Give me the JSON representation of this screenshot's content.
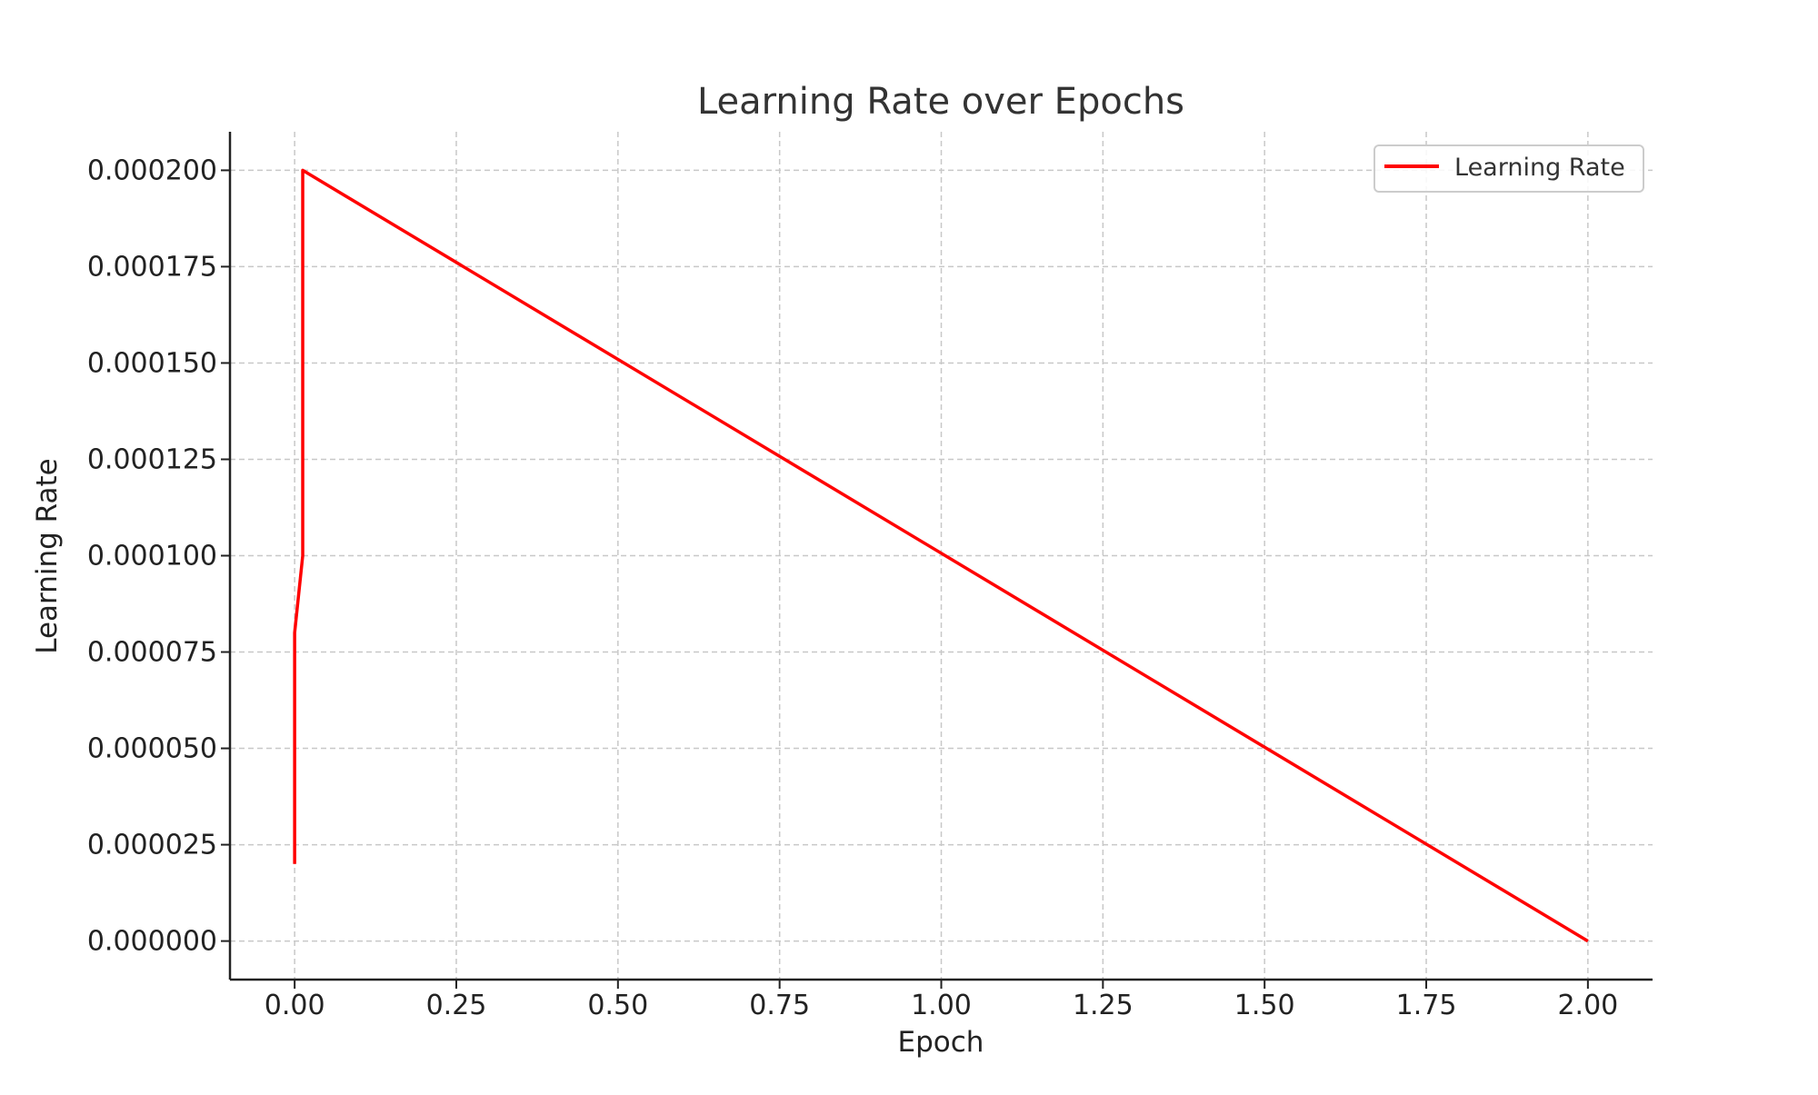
{
  "chart_data": {
    "type": "line",
    "title": "Learning Rate over Epochs",
    "xlabel": "Epoch",
    "ylabel": "Learning Rate",
    "xlim": [
      -0.1,
      2.1
    ],
    "ylim": [
      -1e-05,
      0.00021
    ],
    "xticks": [
      0.0,
      0.25,
      0.5,
      0.75,
      1.0,
      1.25,
      1.5,
      1.75,
      2.0
    ],
    "xtick_labels": [
      "0.00",
      "0.25",
      "0.50",
      "0.75",
      "1.00",
      "1.25",
      "1.50",
      "1.75",
      "2.00"
    ],
    "yticks": [
      0.0,
      2.5e-05,
      5e-05,
      7.5e-05,
      0.0001,
      0.000125,
      0.00015,
      0.000175,
      0.0002
    ],
    "ytick_labels": [
      "0.000000",
      "0.000025",
      "0.000050",
      "0.000075",
      "0.000100",
      "0.000125",
      "0.000150",
      "0.000175",
      "0.000200"
    ],
    "grid": true,
    "legend_position": "top-right",
    "series": [
      {
        "name": "Learning Rate",
        "color": "#ff0000",
        "x": [
          0.0,
          0.0,
          0.0,
          0.0,
          0.0,
          0.0,
          0.0,
          0.0,
          0.0,
          0.0,
          0.0,
          0.0,
          0.0,
          0.0,
          0.0,
          0.0,
          0.0,
          0.0,
          0.0,
          0.0,
          0.0,
          0.0,
          0.0,
          0.0,
          0.0,
          0.0,
          0.0,
          0.0,
          0.0,
          0.0,
          0.0,
          0.0,
          0.0,
          0.0,
          0.0,
          0.0,
          0.0,
          0.0,
          0.0,
          0.0,
          0.0,
          0.0,
          0.0,
          0.0,
          0.0,
          0.0,
          0.0,
          0.0,
          0.0,
          0.0,
          0.0,
          0.0,
          0.0,
          0.0,
          0.0,
          0.0,
          0.0,
          0.0,
          0.0,
          0.0,
          0.0,
          0.0,
          0.0,
          0.0,
          0.0,
          0.0,
          0.0,
          0.0,
          0.0,
          0.0,
          0.0,
          0.0,
          0.0,
          0.0,
          0.0,
          0.0,
          0.0,
          0.0,
          0.0,
          0.0,
          0.0,
          0.0,
          0.0,
          0.0,
          0.0,
          0.0,
          0.0,
          0.0,
          0.0,
          0.0,
          0.0,
          0.0,
          0.0,
          0.0,
          0.0,
          0.0,
          0.0,
          0.0,
          0.0,
          0.0,
          0.0,
          0.0,
          0.0,
          0.0,
          0.0,
          0.0,
          0.0,
          0.0,
          0.0,
          0.0,
          0.0,
          0.0,
          0.0,
          0.0,
          0.0,
          0.0,
          0.0,
          0.0,
          0.0,
          0.0,
          0.0,
          0.0,
          0.0,
          0.0,
          0.0,
          0.0,
          0.0,
          0.0,
          0.0,
          0.0,
          0.0,
          0.0,
          0.0,
          0.0,
          0.0,
          0.0,
          0.0,
          0.0,
          0.0,
          0.0,
          0.0,
          0.0,
          0.0,
          0.0,
          0.0,
          0.0,
          0.0,
          0.0,
          0.0,
          0.0,
          0.0,
          0.0,
          0.0,
          0.0,
          0.0,
          0.0,
          0.0,
          0.0,
          0.0,
          0.0,
          0.0,
          0.0,
          0.0,
          0.0,
          0.0,
          0.0,
          0.0,
          0.0,
          0.0,
          0.0,
          0.0,
          0.0,
          0.0,
          0.0,
          0.0,
          0.0,
          0.0,
          0.0,
          0.0,
          0.0,
          0.0,
          0.0,
          0.0,
          0.0,
          0.0,
          0.0,
          0.0,
          0.0,
          0.0,
          0.0,
          0.0,
          0.0,
          0.0,
          0.0,
          0.0,
          0.0,
          0.0,
          0.0,
          0.0
        ],
        "points": [
          [
            0.0,
            2e-05
          ],
          [
            0.0,
            8e-05
          ],
          [
            0.0125,
            0.0001
          ],
          [
            0.0125,
            0.0002
          ],
          [
            2.0,
            0.0
          ]
        ]
      }
    ]
  }
}
